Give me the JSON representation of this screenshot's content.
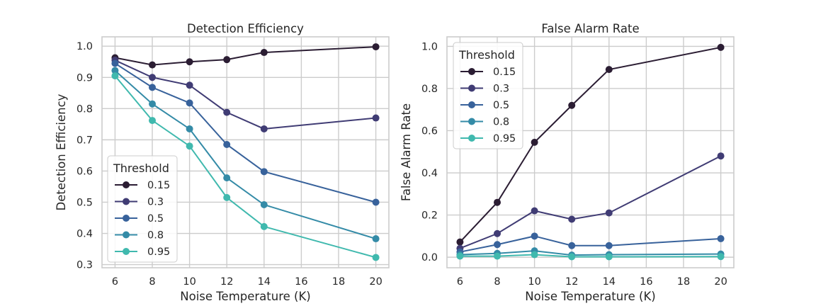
{
  "chart_data": [
    {
      "type": "line",
      "title": "Detection Efficiency",
      "xlabel": "Noise Temperature (K)",
      "ylabel": "Detection Efficiency",
      "x": [
        6,
        8,
        10,
        12,
        14,
        20
      ],
      "xlim": [
        5.3,
        20.7
      ],
      "ylim": [
        0.29,
        1.03
      ],
      "xticks": [
        6,
        8,
        10,
        12,
        14,
        16,
        18,
        20
      ],
      "yticks": [
        0.3,
        0.4,
        0.5,
        0.6,
        0.7,
        0.8,
        0.9,
        1.0
      ],
      "grid": true,
      "legend_title": "Threshold",
      "legend_position": "lower-left",
      "series": [
        {
          "name": "0.15",
          "color": "#2b1d33",
          "values": [
            0.963,
            0.94,
            0.95,
            0.957,
            0.98,
            0.998
          ]
        },
        {
          "name": "0.3",
          "color": "#403c74",
          "values": [
            0.955,
            0.9,
            0.875,
            0.788,
            0.735,
            0.77
          ]
        },
        {
          "name": "0.5",
          "color": "#38629b",
          "values": [
            0.945,
            0.868,
            0.818,
            0.685,
            0.598,
            0.5
          ]
        },
        {
          "name": "0.8",
          "color": "#348ba7",
          "values": [
            0.922,
            0.815,
            0.735,
            0.578,
            0.492,
            0.383
          ]
        },
        {
          "name": "0.95",
          "color": "#40b9ae",
          "values": [
            0.905,
            0.762,
            0.68,
            0.515,
            0.422,
            0.323
          ]
        }
      ]
    },
    {
      "type": "line",
      "title": "False Alarm Rate",
      "xlabel": "Noise Temperature (K)",
      "ylabel": "False Alarm Rate",
      "x": [
        6,
        8,
        10,
        12,
        14,
        20
      ],
      "xlim": [
        5.3,
        20.7
      ],
      "ylim": [
        -0.05,
        1.045
      ],
      "xticks": [
        6,
        8,
        10,
        12,
        14,
        16,
        18,
        20
      ],
      "yticks": [
        0.0,
        0.2,
        0.4,
        0.6,
        0.8,
        1.0
      ],
      "ytick_labels": [
        "0.0",
        "0.2",
        "0.4",
        "0.6",
        "0.8",
        "1.0"
      ],
      "grid": true,
      "legend_title": "Threshold",
      "legend_position": "upper-left",
      "series": [
        {
          "name": "0.15",
          "color": "#2b1d33",
          "values": [
            0.072,
            0.26,
            0.545,
            0.72,
            0.89,
            0.995
          ]
        },
        {
          "name": "0.3",
          "color": "#403c74",
          "values": [
            0.042,
            0.112,
            0.22,
            0.18,
            0.21,
            0.48
          ]
        },
        {
          "name": "0.5",
          "color": "#38629b",
          "values": [
            0.025,
            0.06,
            0.1,
            0.055,
            0.055,
            0.088
          ]
        },
        {
          "name": "0.8",
          "color": "#348ba7",
          "values": [
            0.012,
            0.018,
            0.03,
            0.01,
            0.012,
            0.015
          ]
        },
        {
          "name": "0.95",
          "color": "#40b9ae",
          "values": [
            0.005,
            0.005,
            0.012,
            0.002,
            0.002,
            0.003
          ]
        }
      ]
    }
  ]
}
